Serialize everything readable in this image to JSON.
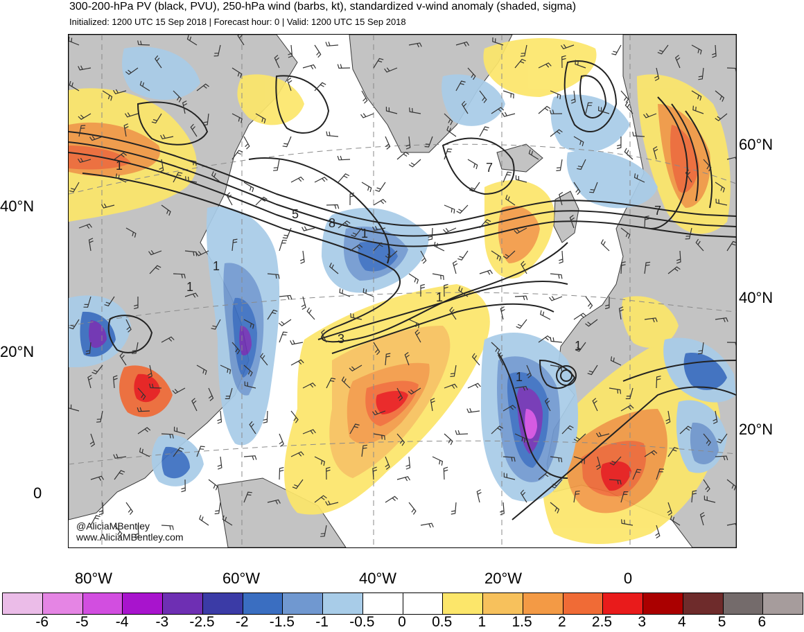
{
  "header": {
    "title": "300-200-hPa PV (black, PVU), 250-hPa wind (barbs, kt), standardized v-wind anomaly (shaded, sigma)",
    "subtitle": "Initialized: 1200 UTC 15 Sep 2018 | Forecast hour: 0 | Valid: 1200 UTC 15 Sep 2018"
  },
  "map": {
    "lat_labels_left": [
      "40°N",
      "20°N",
      "0"
    ],
    "lat_labels_right": [
      "60°N",
      "40°N",
      "20°N"
    ],
    "lon_labels": [
      "80°W",
      "60°W",
      "40°W",
      "20°W",
      "0"
    ],
    "pv_contour_labels": [
      "1",
      "1",
      "1",
      "5",
      "8",
      "1",
      "1",
      "3",
      "7",
      "7",
      "1",
      "1"
    ],
    "watermark_handle": "@AliciaMBentley",
    "watermark_url": "www.AliciaMBentley.com",
    "colors": {
      "land": "#c3c3c3",
      "coast": "#3a3a3a",
      "contour": "#222222"
    }
  },
  "colorbar": {
    "colors": [
      "#ebbce8",
      "#e585e4",
      "#d24ee0",
      "#a814cd",
      "#6e2fb3",
      "#3b3ba6",
      "#3a6ec1",
      "#7098d0",
      "#a8cce8",
      "#ffffff",
      "#ffffff",
      "#fce66a",
      "#f7c15c",
      "#f39a45",
      "#f06b36",
      "#e91b1b",
      "#aa0000",
      "#6e2b2b",
      "#746b6b",
      "#a69c9c"
    ],
    "labels": [
      "-6",
      "-5",
      "-4",
      "-3",
      "-2.5",
      "-2",
      "-1.5",
      "-1",
      "-0.5",
      "0",
      "0.5",
      "1",
      "1.5",
      "2",
      "2.5",
      "3",
      "4",
      "5",
      "6"
    ]
  }
}
